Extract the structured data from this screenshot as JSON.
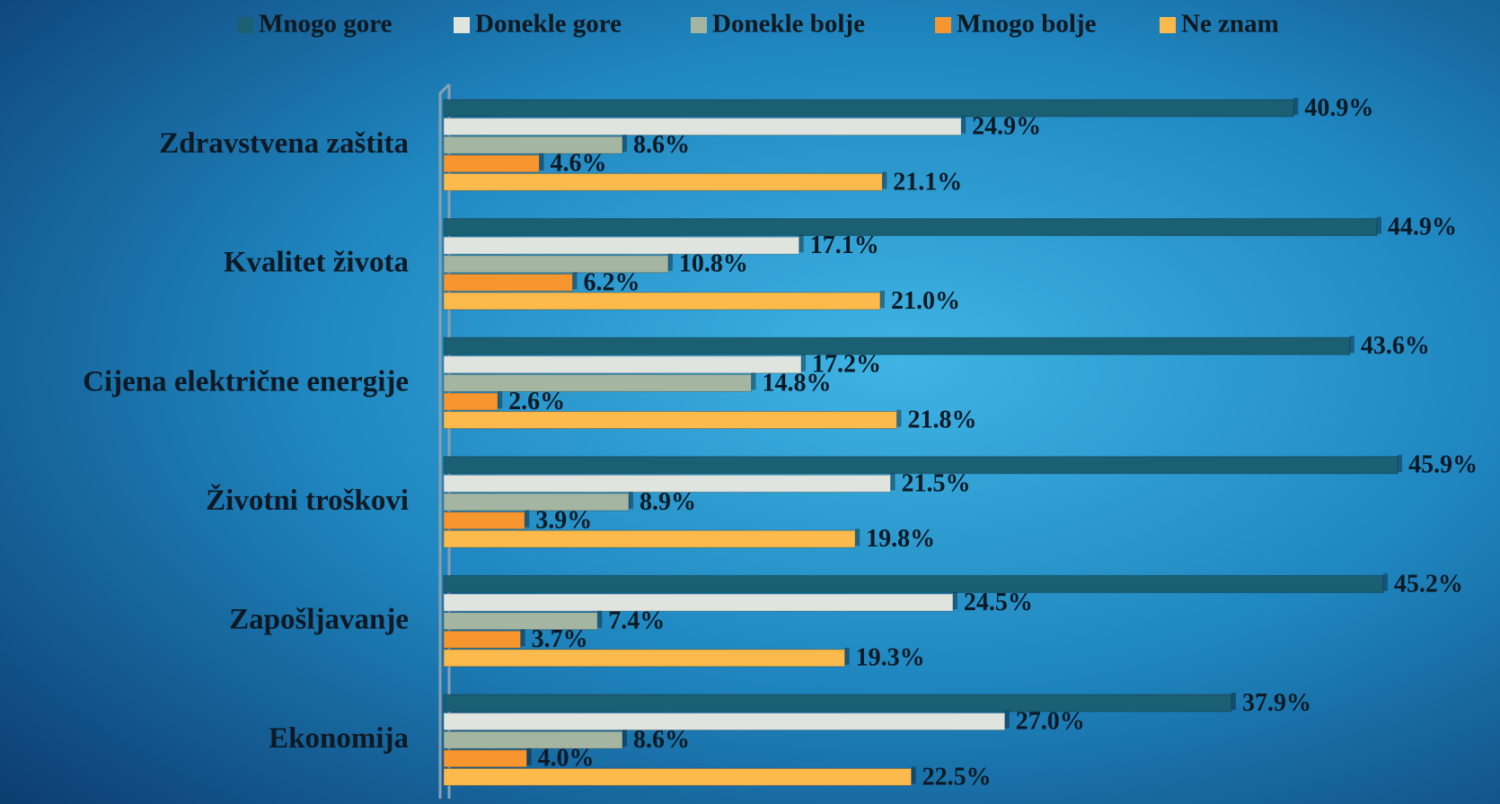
{
  "chart_data": {
    "type": "bar",
    "orientation": "horizontal",
    "categories": [
      "Zdravstvena zaštita",
      "Kvalitet života",
      "Cijena električne energije",
      "Životni troškovi",
      "Zapošljavanje",
      "Ekonomija"
    ],
    "series": [
      {
        "name": "Mnogo gore",
        "color": "#1b5f73",
        "values": [
          40.9,
          44.9,
          43.6,
          45.9,
          45.2,
          37.9
        ],
        "value_labels": [
          "40.9%",
          "44.9%",
          "43.6%",
          "45.9%",
          "45.2%",
          "37.9%"
        ]
      },
      {
        "name": "Donekle gore",
        "color": "#dfe5de",
        "values": [
          24.9,
          17.1,
          17.2,
          21.5,
          24.5,
          27.0
        ],
        "value_labels": [
          "24.9%",
          "17.1%",
          "17.2%",
          "21.5%",
          "24.5%",
          "27.0%"
        ]
      },
      {
        "name": "Donekle bolje",
        "color": "#a4b6a2",
        "values": [
          8.6,
          10.8,
          14.8,
          8.9,
          7.4,
          8.6
        ],
        "value_labels": [
          "8.6%",
          "10.8%",
          "14.8%",
          "8.9%",
          "7.4%",
          "8.6%"
        ]
      },
      {
        "name": "Mnogo bolje",
        "color": "#f7962f",
        "values": [
          4.6,
          6.2,
          2.6,
          3.9,
          3.7,
          4.0
        ],
        "value_labels": [
          "4.6%",
          "6.2%",
          "2.6%",
          "3.9%",
          "3.7%",
          "4.0%"
        ]
      },
      {
        "name": "Ne znam",
        "color": "#fdba4c",
        "values": [
          21.1,
          21.0,
          21.8,
          19.8,
          19.3,
          22.5
        ],
        "value_labels": [
          "21.1%",
          "21.0%",
          "21.8%",
          "19.8%",
          "19.3%",
          "22.5%"
        ]
      }
    ],
    "xlim": [
      0,
      50
    ]
  }
}
